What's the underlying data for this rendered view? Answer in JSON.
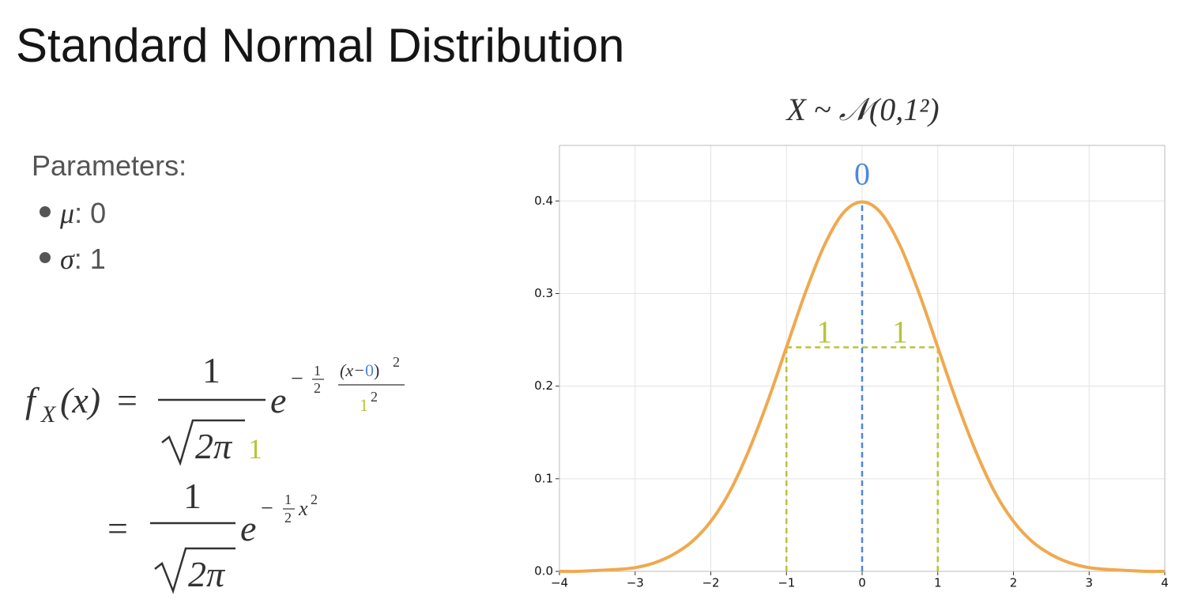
{
  "slide": {
    "title": "Standard Normal Distribution",
    "parameters_heading": "Parameters:",
    "parameters": [
      {
        "symbol": "μ",
        "text": ": 0",
        "color": "#7a9be0"
      },
      {
        "symbol": "σ",
        "text": ": 1",
        "color": "#bcc63f"
      }
    ]
  },
  "formulas": [
    {
      "f": "f",
      "sub": "X",
      "arg": "(x)",
      "eq": "=",
      "num": "1",
      "root": "2π",
      "sigma": "1",
      "e": "e",
      "minus": "−",
      "half_num": "1",
      "half_den": "2",
      "exp_open": "(x−",
      "mu": "0",
      "exp_close": ")",
      "exp_sq": "2",
      "exp_den": "1",
      "exp_den_sq": "2"
    },
    {
      "eq": "=",
      "num": "1",
      "root": "2π",
      "e": "e",
      "minus": "−",
      "half_num": "1",
      "half_den": "2",
      "x": "x",
      "sq": "2"
    }
  ],
  "chart_data": {
    "type": "line",
    "title": "X ~ 𝒩(0,1²)",
    "x": [
      -4,
      -3.75,
      -3.5,
      -3.25,
      -3,
      -2.75,
      -2.5,
      -2.25,
      -2,
      -1.75,
      -1.5,
      -1.25,
      -1,
      -0.75,
      -0.5,
      -0.25,
      0,
      0.25,
      0.5,
      0.75,
      1,
      1.25,
      1.5,
      1.75,
      2,
      2.25,
      2.5,
      2.75,
      3,
      3.25,
      3.5,
      3.75,
      4
    ],
    "values": [
      0.0,
      0.0,
      0.001,
      0.002,
      0.004,
      0.009,
      0.018,
      0.032,
      0.054,
      0.086,
      0.13,
      0.183,
      0.242,
      0.301,
      0.352,
      0.387,
      0.399,
      0.387,
      0.352,
      0.301,
      0.242,
      0.183,
      0.13,
      0.086,
      0.054,
      0.032,
      0.018,
      0.009,
      0.004,
      0.002,
      0.001,
      0.0,
      0.0
    ],
    "color": "#f0a94e",
    "xlim": [
      -4,
      4
    ],
    "ylim": [
      0,
      0.46
    ],
    "xticks": [
      {
        "value": -4,
        "label": "−4"
      },
      {
        "value": -3,
        "label": "−3"
      },
      {
        "value": -2,
        "label": "−2"
      },
      {
        "value": -1,
        "label": "−1"
      },
      0,
      1,
      2,
      3,
      4
    ],
    "yticks": [
      {
        "value": 0,
        "label": "0.0"
      },
      0.1,
      0.2,
      0.3,
      0.4
    ],
    "grid": true,
    "mean_marker": {
      "x": 0,
      "top": 0.399,
      "label": "0",
      "color": "#4f86dc"
    },
    "sigma_marker": {
      "x": [
        -1,
        1
      ],
      "height": 0.242,
      "labels": [
        "1",
        "1"
      ],
      "color": "#b8c43a"
    }
  }
}
